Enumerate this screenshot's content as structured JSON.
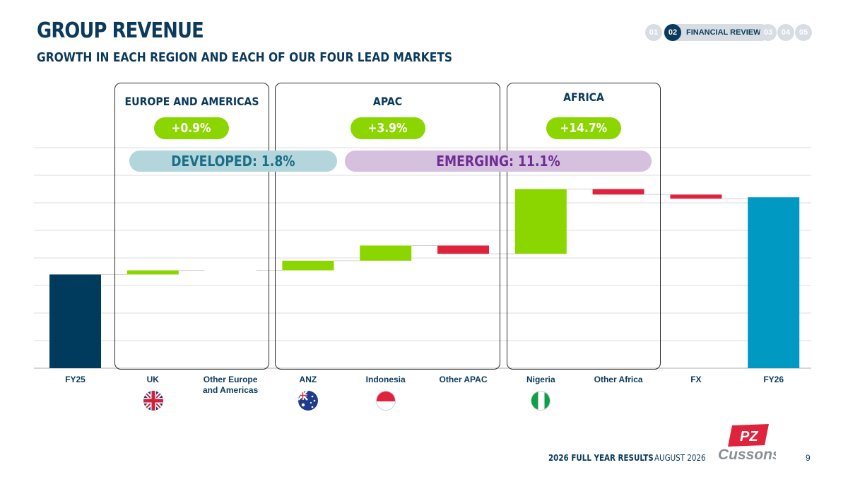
{
  "header": {
    "title": "GROUP REVENUE",
    "subtitle": "GROWTH IN EACH REGION AND EACH OF OUR FOUR LEAD MARKETS"
  },
  "nav": {
    "items": [
      "01",
      "02",
      "03",
      "04",
      "05"
    ],
    "active_label": "FINANCIAL REVIEW"
  },
  "regions": [
    {
      "name": "EUROPE AND AMERICAS",
      "growth": "+0.9%"
    },
    {
      "name": "APAC",
      "growth": "+3.9%"
    },
    {
      "name": "AFRICA",
      "growth": "+14.7%"
    }
  ],
  "market_groups": {
    "developed": "DEVELOPED: 1.8%",
    "emerging": "EMERGING: 11.1%"
  },
  "chart_data": {
    "type": "bar",
    "subtype": "waterfall",
    "categories": [
      "FY25",
      "UK",
      "Other Europe\nand Americas",
      "ANZ",
      "Indonesia",
      "Other APAC",
      "Nigeria",
      "Other Africa",
      "FX",
      "FY26"
    ],
    "bar_kinds": [
      "total",
      "delta",
      "delta",
      "delta",
      "delta",
      "delta",
      "delta",
      "delta",
      "delta",
      "total"
    ],
    "values": [
      3.4,
      0.15,
      0.0,
      0.35,
      0.55,
      -0.3,
      2.35,
      -0.2,
      -0.15,
      6.2
    ],
    "ylim": [
      0,
      8
    ],
    "grid": true,
    "colors": {
      "start_total": "#003a5d",
      "end_total": "#0099c2",
      "increase": "#8cd600",
      "decrease": "#e0233c",
      "connector": "#cfcfcf",
      "grid": "#dedede"
    }
  },
  "flags": [
    {
      "category": "UK",
      "icon": "uk-flag-icon"
    },
    {
      "category": "ANZ",
      "icon": "australia-flag-icon"
    },
    {
      "category": "Indonesia",
      "icon": "indonesia-flag-icon"
    },
    {
      "category": "Nigeria",
      "icon": "nigeria-flag-icon"
    }
  ],
  "footer": {
    "event": "2026 FULL YEAR RESULTS",
    "date": "AUGUST 2026",
    "page": "9",
    "logo_top": "PZ",
    "logo_bottom": "Cussons"
  }
}
